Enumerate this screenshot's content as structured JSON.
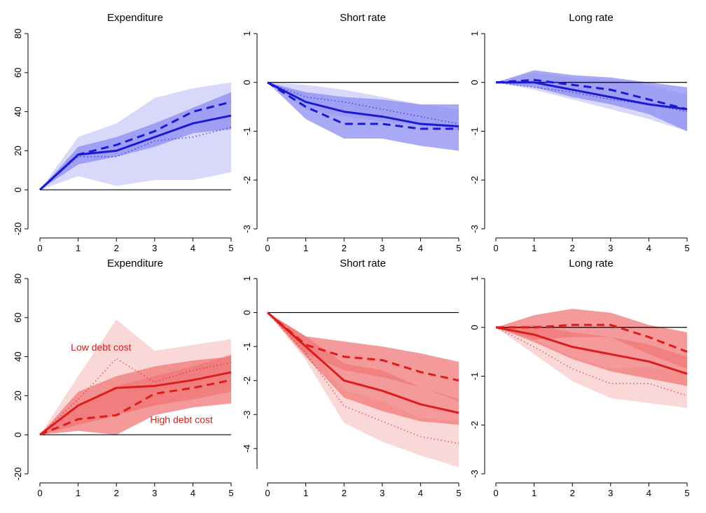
{
  "colors": {
    "blue": "#1a1ad4",
    "blue_band_dark": "#8c8cf2",
    "blue_band_light": "#d4d4fb",
    "red": "#dd1c1c",
    "red_band_dark": "#f07878",
    "red_band_light": "#fad4d4"
  },
  "chart_data": [
    {
      "type": "line",
      "title": "Expenditure",
      "color": "blue",
      "x": [
        0,
        1,
        2,
        3,
        4,
        5
      ],
      "xlim": [
        0,
        5
      ],
      "ylim": [
        -20,
        80
      ],
      "yticks": [
        -20,
        0,
        20,
        40,
        60,
        80
      ],
      "grid": false,
      "series": [
        {
          "style": "solid",
          "values": [
            0,
            18,
            20,
            27,
            34,
            38
          ],
          "band": {
            "lower": [
              0,
              13,
              17,
              22,
              29,
              31
            ],
            "upper": [
              0,
              22,
              27,
              34,
              42,
              50
            ]
          }
        },
        {
          "style": "dashed",
          "values": [
            0,
            18,
            23,
            30,
            40,
            45
          ]
        },
        {
          "style": "dotted",
          "values": [
            0,
            17,
            17,
            25,
            27,
            32
          ],
          "band": {
            "lower": [
              0,
              7,
              2,
              5,
              5,
              9
            ],
            "upper": [
              0,
              27,
              34,
              47,
              52,
              55
            ]
          }
        }
      ]
    },
    {
      "type": "line",
      "title": "Short rate",
      "color": "blue",
      "x": [
        0,
        1,
        2,
        3,
        4,
        5
      ],
      "xlim": [
        0,
        5
      ],
      "ylim": [
        -3,
        1
      ],
      "yticks": [
        -3,
        -2,
        -1,
        0,
        1
      ],
      "grid": false,
      "series": [
        {
          "style": "solid",
          "values": [
            0,
            -0.4,
            -0.6,
            -0.7,
            -0.85,
            -0.9
          ],
          "band": {
            "lower": [
              0,
              -0.75,
              -1.15,
              -1.15,
              -1.3,
              -1.4
            ],
            "upper": [
              0,
              -0.2,
              -0.3,
              -0.35,
              -0.45,
              -0.45
            ]
          }
        },
        {
          "style": "dashed",
          "values": [
            0,
            -0.5,
            -0.85,
            -0.85,
            -0.95,
            -0.95
          ]
        },
        {
          "style": "dotted",
          "values": [
            0,
            -0.3,
            -0.4,
            -0.55,
            -0.7,
            -0.85
          ],
          "band": {
            "lower": [
              0,
              -0.55,
              -0.7,
              -0.8,
              -0.9,
              -1.0
            ],
            "upper": [
              0,
              -0.05,
              -0.15,
              -0.3,
              -0.45,
              -0.55
            ]
          }
        }
      ]
    },
    {
      "type": "line",
      "title": "Long rate",
      "color": "blue",
      "x": [
        0,
        1,
        2,
        3,
        4,
        5
      ],
      "xlim": [
        0,
        5
      ],
      "ylim": [
        -3,
        1
      ],
      "yticks": [
        -3,
        -2,
        -1,
        0,
        1
      ],
      "grid": false,
      "series": [
        {
          "style": "solid",
          "values": [
            0,
            0,
            -0.15,
            -0.3,
            -0.45,
            -0.55
          ],
          "band": {
            "lower": [
              0,
              -0.1,
              -0.3,
              -0.45,
              -0.65,
              -1.0
            ],
            "upper": [
              0,
              0.25,
              0.15,
              0.1,
              0,
              -0.1
            ]
          }
        },
        {
          "style": "dashed",
          "values": [
            0,
            0.05,
            -0.05,
            -0.15,
            -0.35,
            -0.55
          ]
        },
        {
          "style": "dotted",
          "values": [
            0,
            -0.1,
            -0.2,
            -0.35,
            -0.45,
            -0.6
          ],
          "band": {
            "lower": [
              0,
              -0.15,
              -0.35,
              -0.55,
              -0.75,
              -1.0
            ],
            "upper": [
              0,
              0.2,
              0.1,
              0.05,
              -0.05,
              -0.25
            ]
          }
        }
      ]
    },
    {
      "type": "line",
      "title": "Expenditure",
      "color": "red",
      "x": [
        0,
        1,
        2,
        3,
        4,
        5
      ],
      "xlim": [
        0,
        5
      ],
      "ylim": [
        -20,
        80
      ],
      "yticks": [
        -20,
        0,
        20,
        40,
        60,
        80
      ],
      "grid": false,
      "annotations": [
        {
          "text": "Low debt cost",
          "x": 1.6,
          "y": 43
        },
        {
          "text": "High debt cost",
          "x": 3.7,
          "y": 6
        }
      ],
      "series": [
        {
          "style": "solid",
          "values": [
            0,
            15,
            24,
            25,
            28,
            32
          ],
          "band": {
            "lower": [
              0,
              5,
              10,
              15,
              18,
              22
            ],
            "upper": [
              0,
              22,
              30,
              35,
              38,
              40
            ]
          }
        },
        {
          "style": "dashed",
          "values": [
            0,
            8,
            10,
            21,
            24,
            28
          ],
          "band": {
            "lower": [
              0,
              2,
              0,
              10,
              14,
              16
            ],
            "upper": [
              0,
              15,
              25,
              30,
              35,
              41
            ]
          }
        },
        {
          "style": "dotted",
          "values": [
            0,
            18,
            39,
            27,
            33,
            37
          ],
          "band": {
            "lower": [
              0,
              5,
              10,
              15,
              20,
              25
            ],
            "upper": [
              0,
              30,
              59,
              43,
              46,
              49
            ]
          }
        }
      ]
    },
    {
      "type": "line",
      "title": "Short rate",
      "color": "red",
      "x": [
        0,
        1,
        2,
        3,
        4,
        5
      ],
      "xlim": [
        0,
        5
      ],
      "ylim": [
        -4.6,
        1
      ],
      "yticks": [
        -4,
        -3,
        -2,
        -1,
        0,
        1
      ],
      "grid": false,
      "series": [
        {
          "style": "solid",
          "values": [
            0,
            -1.0,
            -2.0,
            -2.3,
            -2.7,
            -2.95
          ],
          "band": {
            "lower": [
              0,
              -1.3,
              -2.5,
              -2.9,
              -3.2,
              -3.3
            ],
            "upper": [
              0,
              -0.7,
              -1.5,
              -1.7,
              -2.2,
              -2.55
            ]
          }
        },
        {
          "style": "dashed",
          "values": [
            0,
            -0.95,
            -1.3,
            -1.4,
            -1.75,
            -2.0
          ],
          "band": {
            "lower": [
              0,
              -1.2,
              -1.7,
              -1.9,
              -2.2,
              -2.6
            ],
            "upper": [
              0,
              -0.7,
              -0.85,
              -1.0,
              -1.2,
              -1.45
            ]
          }
        },
        {
          "style": "dotted",
          "values": [
            0,
            -1.2,
            -2.75,
            -3.2,
            -3.65,
            -3.85
          ],
          "band": {
            "lower": [
              0,
              -1.4,
              -3.25,
              -3.8,
              -4.2,
              -4.55
            ],
            "upper": [
              0,
              -0.9,
              -2.3,
              -2.6,
              -3.1,
              -3.2
            ]
          }
        }
      ]
    },
    {
      "type": "line",
      "title": "Long rate",
      "color": "red",
      "x": [
        0,
        1,
        2,
        3,
        4,
        5
      ],
      "xlim": [
        0,
        5
      ],
      "ylim": [
        -3,
        1
      ],
      "yticks": [
        -3,
        -2,
        -1,
        0,
        1
      ],
      "grid": false,
      "series": [
        {
          "style": "solid",
          "values": [
            0,
            -0.15,
            -0.4,
            -0.55,
            -0.7,
            -0.95
          ],
          "band": {
            "lower": [
              0,
              -0.3,
              -0.65,
              -0.9,
              -1.05,
              -1.2
            ],
            "upper": [
              0,
              0.05,
              -0.1,
              -0.2,
              -0.35,
              -0.6
            ]
          }
        },
        {
          "style": "dashed",
          "values": [
            0,
            0,
            0.05,
            0.05,
            -0.2,
            -0.5
          ],
          "band": {
            "lower": [
              0,
              -0.25,
              -0.2,
              -0.2,
              -0.55,
              -0.85
            ],
            "upper": [
              0,
              0.25,
              0.38,
              0.3,
              0.05,
              -0.1
            ]
          }
        },
        {
          "style": "dotted",
          "values": [
            0,
            -0.4,
            -0.85,
            -1.15,
            -1.15,
            -1.4
          ],
          "band": {
            "lower": [
              0,
              -0.55,
              -1.1,
              -1.45,
              -1.55,
              -1.65
            ],
            "upper": [
              0,
              -0.25,
              -0.6,
              -0.85,
              -0.8,
              -0.95
            ]
          }
        }
      ]
    }
  ]
}
